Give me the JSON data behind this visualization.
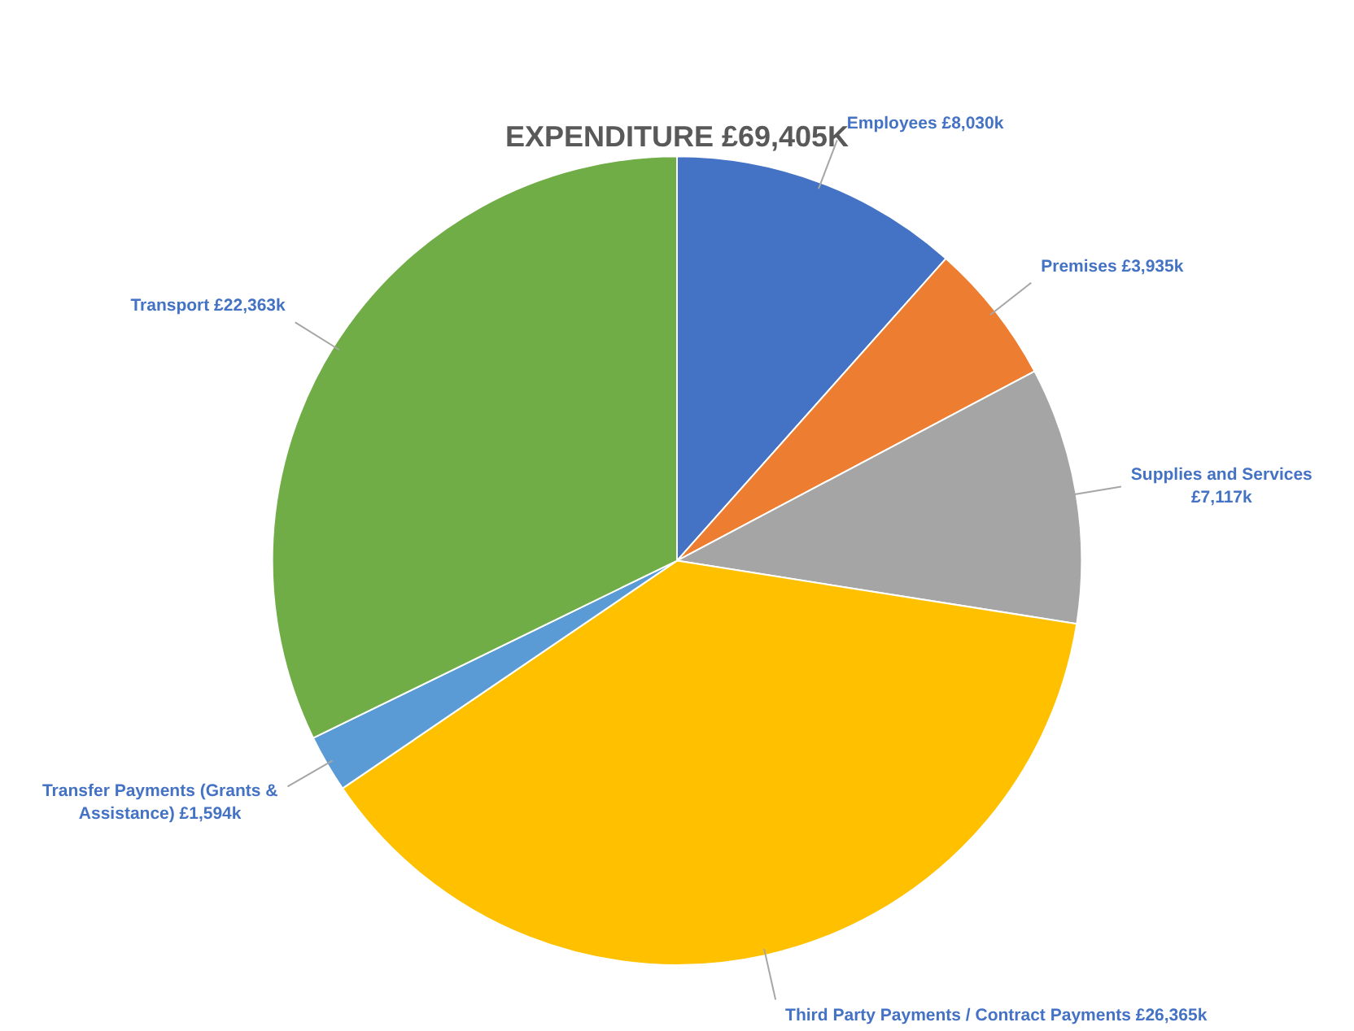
{
  "chart_data": {
    "type": "pie",
    "title": "EXPENDITURE £69,405K",
    "categories": [
      "Employees",
      "Premises",
      "Supplies and Services",
      "Third Party Payments / Contract Payments",
      "Transfer Payments (Grants & Assistance)",
      "Transport"
    ],
    "values": [
      8030,
      3935,
      7117,
      26365,
      1594,
      22363
    ],
    "value_labels": [
      "£8,030k",
      "£3,935k",
      "£7,117k",
      "£26,365k",
      "£1,594k",
      "£22,363k"
    ],
    "colors": [
      "#4472c4",
      "#ed7d31",
      "#a5a5a5",
      "#ffc000",
      "#5b9bd5",
      "#70ad47"
    ],
    "legend": false
  }
}
